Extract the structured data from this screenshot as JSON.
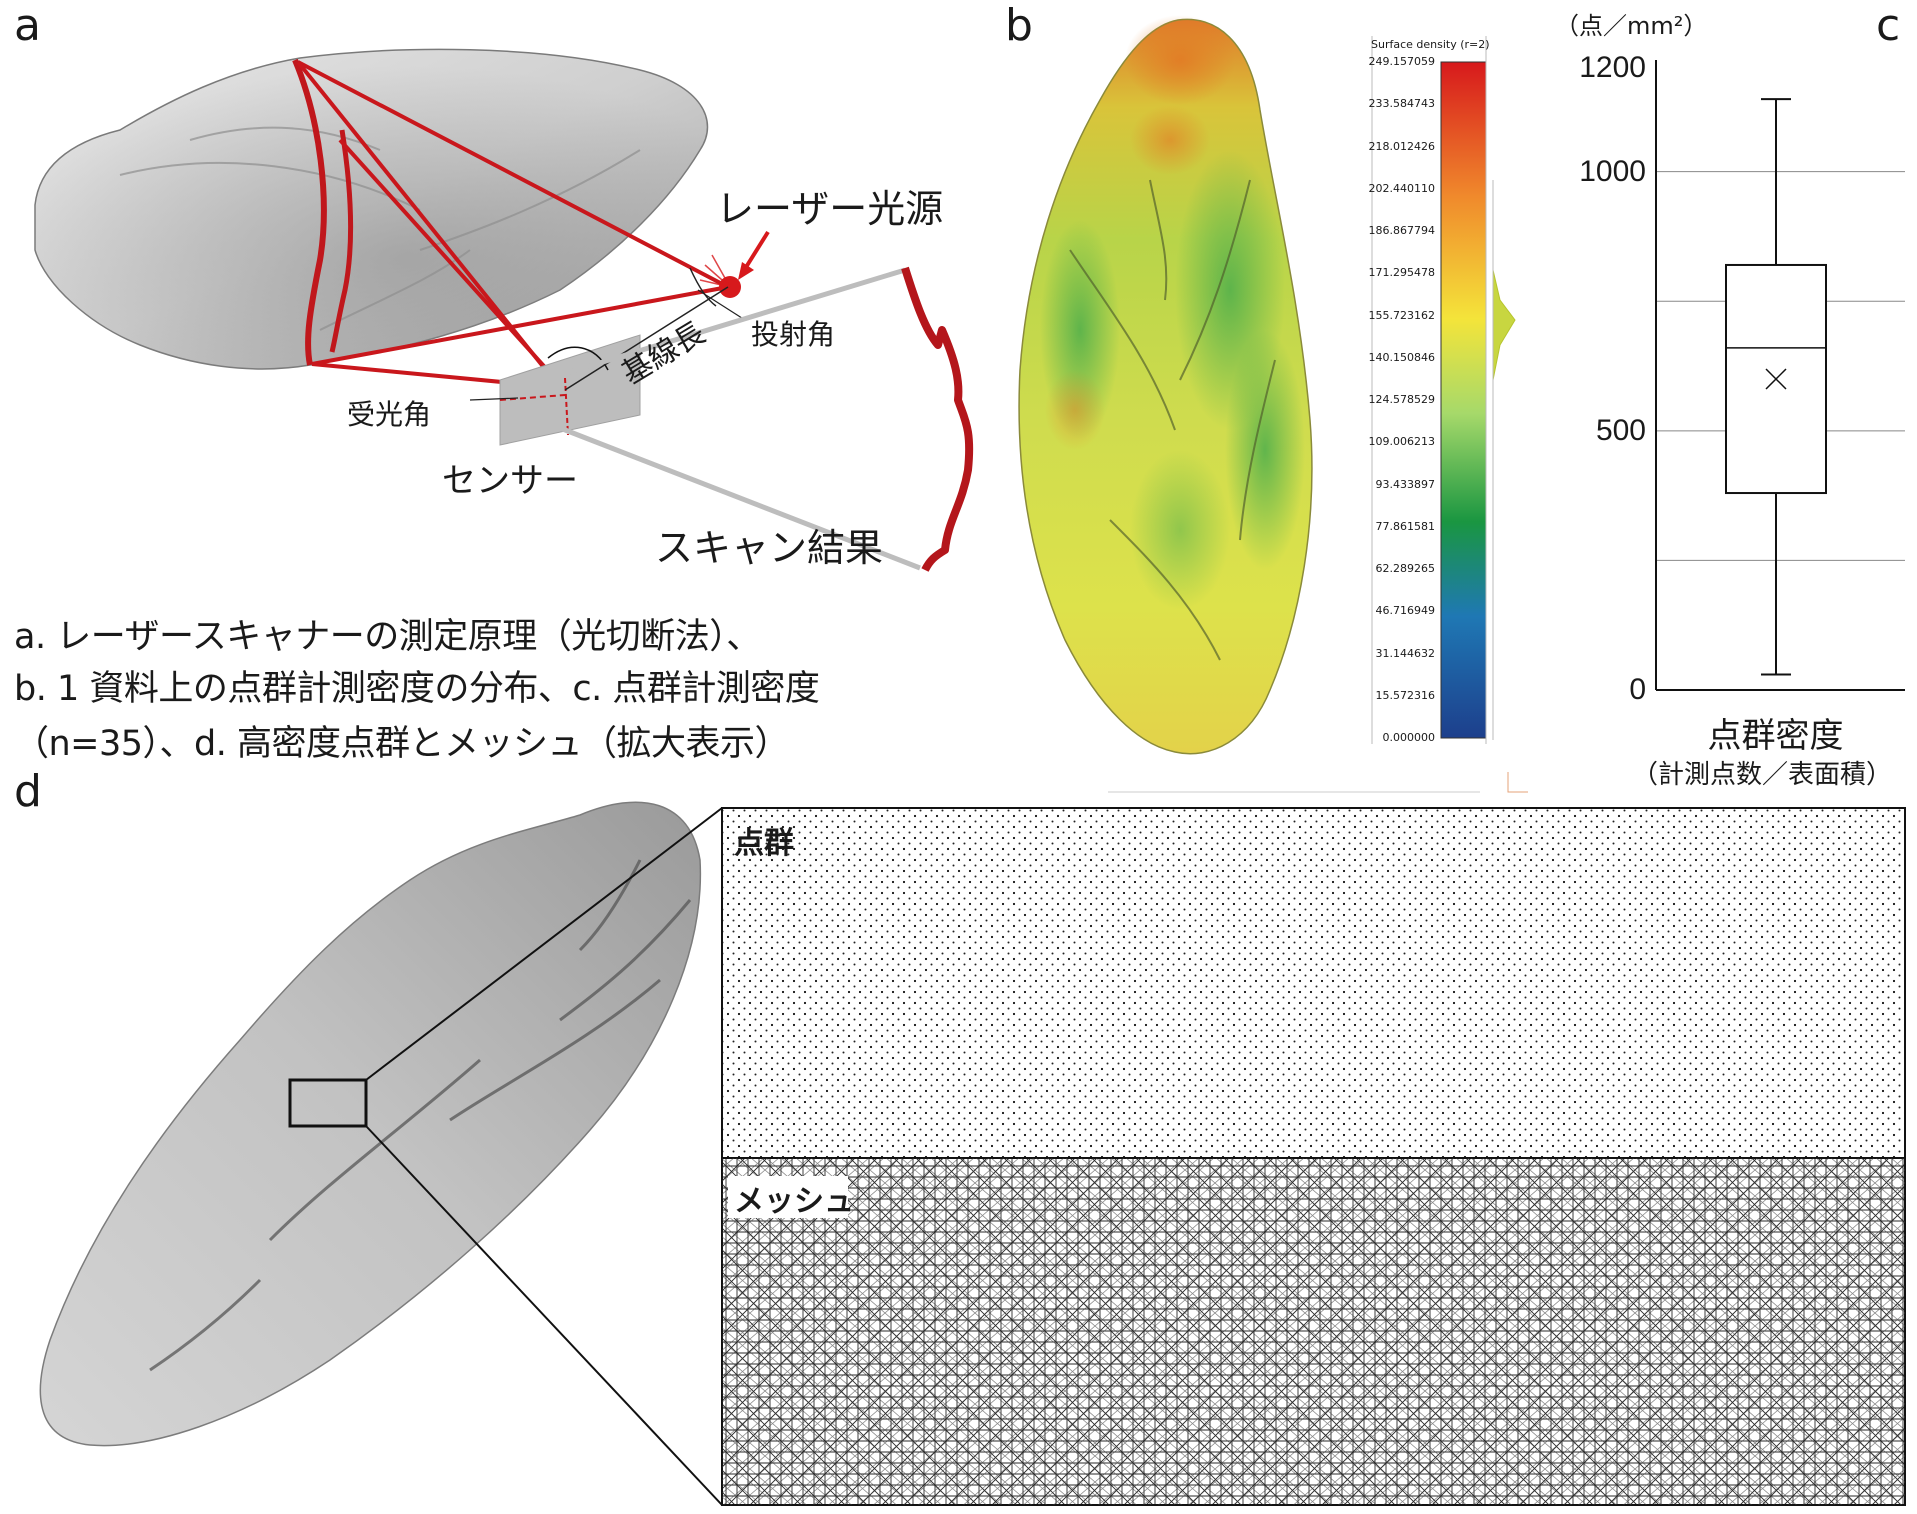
{
  "panels": {
    "a": "a",
    "b": "b",
    "c": "c",
    "d": "d"
  },
  "diagram_a": {
    "laser_source": "レーザー光源",
    "projection_angle": "投射角",
    "baseline_length": "基線長",
    "receiving_angle": "受光角",
    "sensor": "センサー",
    "scan_result": "スキャン結果"
  },
  "caption": {
    "line1": "a. レーザースキャナーの測定原理（光切断法）、",
    "line2": "b. 1 資料上の点群計測密度の分布、c. 点群計測密度",
    "line3": "（n=35）、d. 高密度点群とメッシュ（拡大表示）"
  },
  "colorbar": {
    "title": "Surface density (r=2)",
    "ticks": [
      "249.157059",
      "233.584743",
      "218.012426",
      "202.440110",
      "186.867794",
      "171.295478",
      "155.723162",
      "140.150846",
      "124.578529",
      "109.006213",
      "93.433897",
      "77.861581",
      "62.289265",
      "46.716949",
      "31.144632",
      "15.572316",
      "0.000000"
    ],
    "colors": [
      "#d7191c",
      "#fdae61",
      "#ffff33",
      "#a6d96a",
      "#1a9641",
      "#2166ac",
      "#1d3f8c"
    ]
  },
  "chart_data": {
    "type": "box",
    "unit_label": "（点／mm²）",
    "yticks": [
      "1200",
      "1000",
      "500",
      "0"
    ],
    "ylim": [
      0,
      1200
    ],
    "grid_values": [
      1000,
      750,
      500,
      250
    ],
    "box": {
      "min": 30,
      "q1": 380,
      "median": 660,
      "q3": 820,
      "max": 1140,
      "mean": 600
    },
    "category": "点群密度",
    "category_sub": "（計測点数／表面積）"
  },
  "zoom": {
    "points_label": "点群",
    "mesh_label": "メッシュ"
  }
}
